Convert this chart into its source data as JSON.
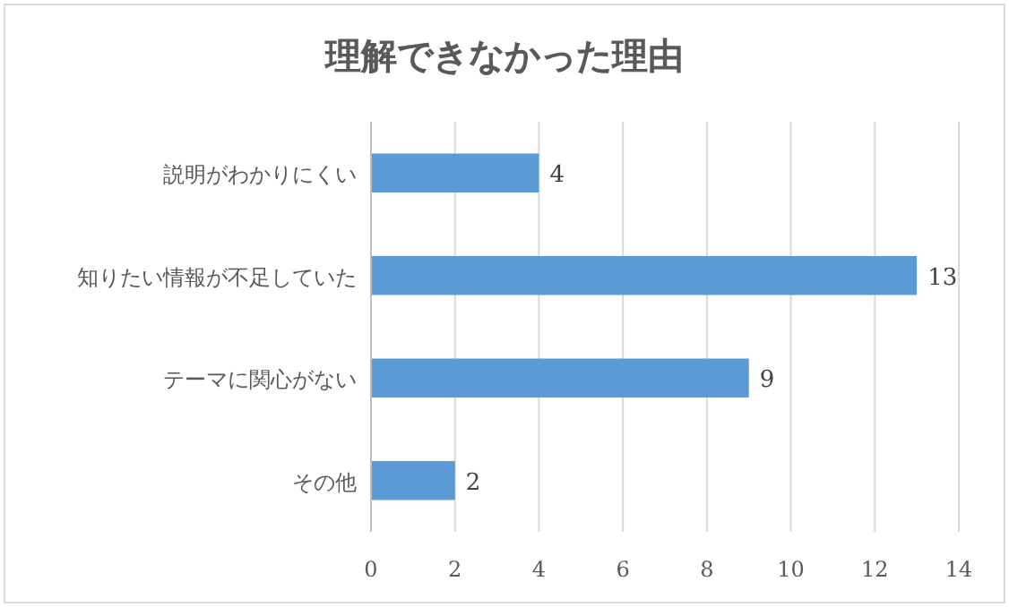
{
  "chart_data": {
    "type": "bar",
    "orientation": "horizontal",
    "title": "理解できなかった理由",
    "categories": [
      "説明がわかりにくい",
      "知りたい情報が不足していた",
      "テーマに関心がない",
      "その他"
    ],
    "values": [
      4,
      13,
      9,
      2
    ],
    "color": "#5b9bd5",
    "xlim": [
      0,
      14
    ],
    "xticks": [
      0,
      2,
      4,
      6,
      8,
      10,
      12,
      14
    ],
    "grid": "x",
    "data_labels": true
  }
}
